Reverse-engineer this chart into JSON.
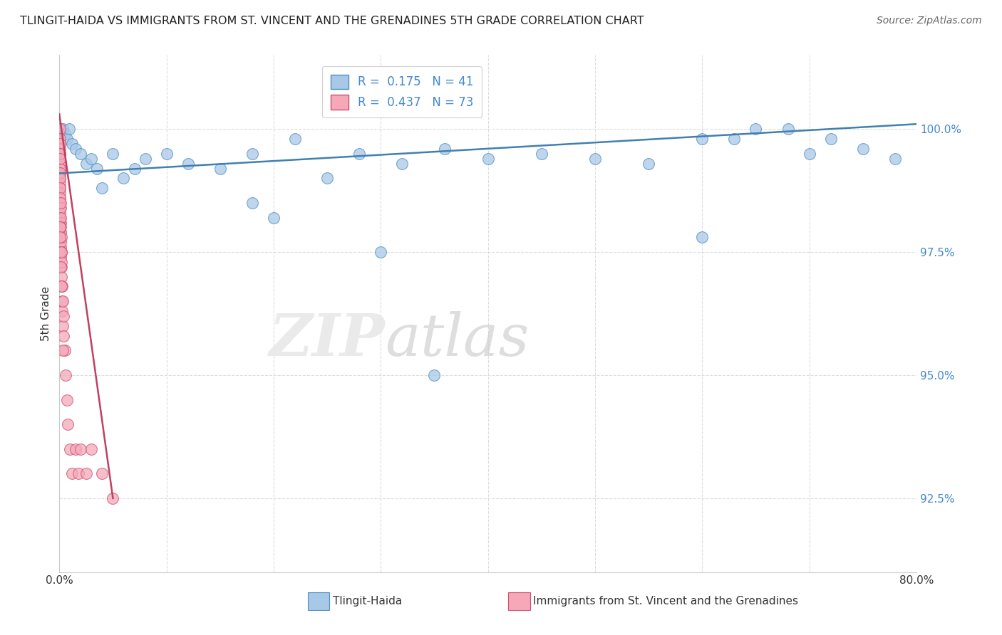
{
  "title": "TLINGIT-HAIDA VS IMMIGRANTS FROM ST. VINCENT AND THE GRENADINES 5TH GRADE CORRELATION CHART",
  "source": "Source: ZipAtlas.com",
  "ylabel": "5th Grade",
  "yticks": [
    92.5,
    95.0,
    97.5,
    100.0
  ],
  "ytick_labels": [
    "92.5%",
    "95.0%",
    "97.5%",
    "100.0%"
  ],
  "xlim": [
    0.0,
    80.0
  ],
  "ylim": [
    91.0,
    101.5
  ],
  "blue_label": "Tlingit-Haida",
  "pink_label": "Immigrants from St. Vincent and the Grenadines",
  "blue_R": 0.175,
  "blue_N": 41,
  "pink_R": 0.437,
  "pink_N": 73,
  "blue_color": "#a8c8e8",
  "pink_color": "#f4a8b8",
  "blue_edge_color": "#5090c0",
  "pink_edge_color": "#d05070",
  "blue_line_color": "#4080b0",
  "pink_line_color": "#c04060",
  "legend_text_color": "#4488cc",
  "blue_scatter_x": [
    0.3,
    0.5,
    0.7,
    0.9,
    1.2,
    1.5,
    2.0,
    2.5,
    3.0,
    3.5,
    4.0,
    5.0,
    6.0,
    7.0,
    8.0,
    10.0,
    12.0,
    15.0,
    18.0,
    22.0,
    25.0,
    28.0,
    32.0,
    36.0,
    40.0,
    45.0,
    50.0,
    55.0,
    60.0,
    63.0,
    65.0,
    68.0,
    70.0,
    72.0,
    75.0,
    78.0,
    18.0,
    20.0,
    30.0,
    35.0,
    60.0
  ],
  "blue_scatter_y": [
    100.0,
    99.9,
    99.8,
    100.0,
    99.7,
    99.6,
    99.5,
    99.3,
    99.4,
    99.2,
    98.8,
    99.5,
    99.0,
    99.2,
    99.4,
    99.5,
    99.3,
    99.2,
    99.5,
    99.8,
    99.0,
    99.5,
    99.3,
    99.6,
    99.4,
    99.5,
    99.4,
    99.3,
    99.8,
    99.8,
    100.0,
    100.0,
    99.5,
    99.8,
    99.6,
    99.4,
    98.5,
    98.2,
    97.5,
    95.0,
    97.8
  ],
  "pink_scatter_x": [
    0.02,
    0.02,
    0.02,
    0.02,
    0.02,
    0.02,
    0.03,
    0.03,
    0.03,
    0.03,
    0.03,
    0.04,
    0.04,
    0.04,
    0.04,
    0.05,
    0.05,
    0.05,
    0.05,
    0.05,
    0.06,
    0.06,
    0.06,
    0.06,
    0.07,
    0.07,
    0.07,
    0.08,
    0.08,
    0.08,
    0.09,
    0.09,
    0.1,
    0.1,
    0.1,
    0.1,
    0.12,
    0.12,
    0.12,
    0.15,
    0.15,
    0.15,
    0.18,
    0.18,
    0.2,
    0.2,
    0.22,
    0.25,
    0.25,
    0.3,
    0.3,
    0.35,
    0.4,
    0.5,
    0.6,
    0.7,
    0.8,
    1.0,
    1.2,
    1.5,
    1.8,
    2.0,
    2.5,
    3.0,
    4.0,
    5.0,
    0.05,
    0.05,
    0.08,
    0.1,
    0.15,
    0.2,
    0.3
  ],
  "pink_scatter_y": [
    100.0,
    99.8,
    99.6,
    99.4,
    99.2,
    99.0,
    99.7,
    99.5,
    99.3,
    99.1,
    98.8,
    99.5,
    99.2,
    98.9,
    98.6,
    99.4,
    99.1,
    98.8,
    98.5,
    98.2,
    99.0,
    98.7,
    98.4,
    98.1,
    98.8,
    98.5,
    98.2,
    98.6,
    98.3,
    98.0,
    98.4,
    98.1,
    98.5,
    98.2,
    97.9,
    97.6,
    98.0,
    97.7,
    97.4,
    97.8,
    97.5,
    97.2,
    97.5,
    97.0,
    97.3,
    96.8,
    96.5,
    96.8,
    96.3,
    96.5,
    96.0,
    96.2,
    95.8,
    95.5,
    95.0,
    94.5,
    94.0,
    93.5,
    93.0,
    93.5,
    93.0,
    93.5,
    93.0,
    93.5,
    93.0,
    92.5,
    98.0,
    97.5,
    97.8,
    97.2,
    96.8,
    97.5,
    95.5
  ],
  "pink_line_x0": 0.0,
  "pink_line_y0": 100.3,
  "pink_line_x1": 5.0,
  "pink_line_y1": 92.5,
  "blue_line_x0": 0.0,
  "blue_line_y0": 99.1,
  "blue_line_x1": 80.0,
  "blue_line_y1": 100.1
}
